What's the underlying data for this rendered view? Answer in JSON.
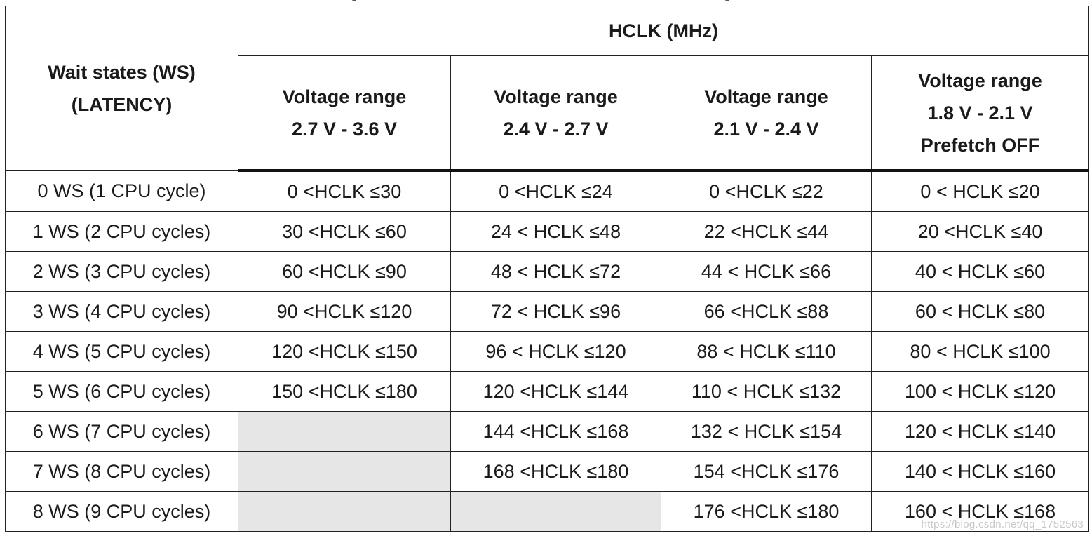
{
  "table": {
    "corner_header": [
      "Wait states (WS)",
      "(LATENCY)"
    ],
    "group_header": "HCLK (MHz)",
    "column_headers": [
      [
        "Voltage range",
        "2.7 V - 3.6 V"
      ],
      [
        "Voltage range",
        "2.4 V - 2.7 V"
      ],
      [
        "Voltage range",
        "2.1 V - 2.4 V"
      ],
      [
        "Voltage range",
        "1.8 V - 2.1 V",
        "Prefetch OFF"
      ]
    ],
    "rows": [
      {
        "ws": "0 WS (1 CPU cycle)",
        "cells": [
          "0 <HCLK ≤30",
          "0 <HCLK ≤24",
          "0 <HCLK ≤22",
          "0 < HCLK ≤20"
        ]
      },
      {
        "ws": "1 WS (2 CPU cycles)",
        "cells": [
          "30 <HCLK ≤60",
          "24 < HCLK ≤48",
          "22 <HCLK ≤44",
          "20 <HCLK ≤40"
        ]
      },
      {
        "ws": "2 WS (3 CPU cycles)",
        "cells": [
          "60 <HCLK ≤90",
          "48 < HCLK ≤72",
          "44 < HCLK ≤66",
          "40 < HCLK ≤60"
        ]
      },
      {
        "ws": "3 WS (4 CPU cycles)",
        "cells": [
          "90 <HCLK ≤120",
          "72 < HCLK ≤96",
          "66 <HCLK ≤88",
          "60 < HCLK ≤80"
        ]
      },
      {
        "ws": "4 WS (5 CPU cycles)",
        "cells": [
          "120 <HCLK ≤150",
          "96 < HCLK ≤120",
          "88 < HCLK ≤110",
          "80 < HCLK ≤100"
        ]
      },
      {
        "ws": "5 WS (6 CPU cycles)",
        "cells": [
          "150 <HCLK ≤180",
          "120 <HCLK ≤144",
          "110 < HCLK ≤132",
          "100 < HCLK ≤120"
        ]
      },
      {
        "ws": "6 WS (7 CPU cycles)",
        "cells": [
          "",
          "144 <HCLK ≤168",
          "132 < HCLK ≤154",
          "120 < HCLK ≤140"
        ]
      },
      {
        "ws": "7 WS (8 CPU cycles)",
        "cells": [
          "",
          "168 <HCLK ≤180",
          "154 <HCLK ≤176",
          "140 < HCLK ≤160"
        ]
      },
      {
        "ws": "8 WS (9 CPU cycles)",
        "cells": [
          "",
          "",
          "176 <HCLK ≤180",
          "160 < HCLK ≤168"
        ]
      }
    ],
    "empty_cell_color": "#e6e6e6"
  },
  "watermark": "https://blog.csdn.net/qq_1752563"
}
